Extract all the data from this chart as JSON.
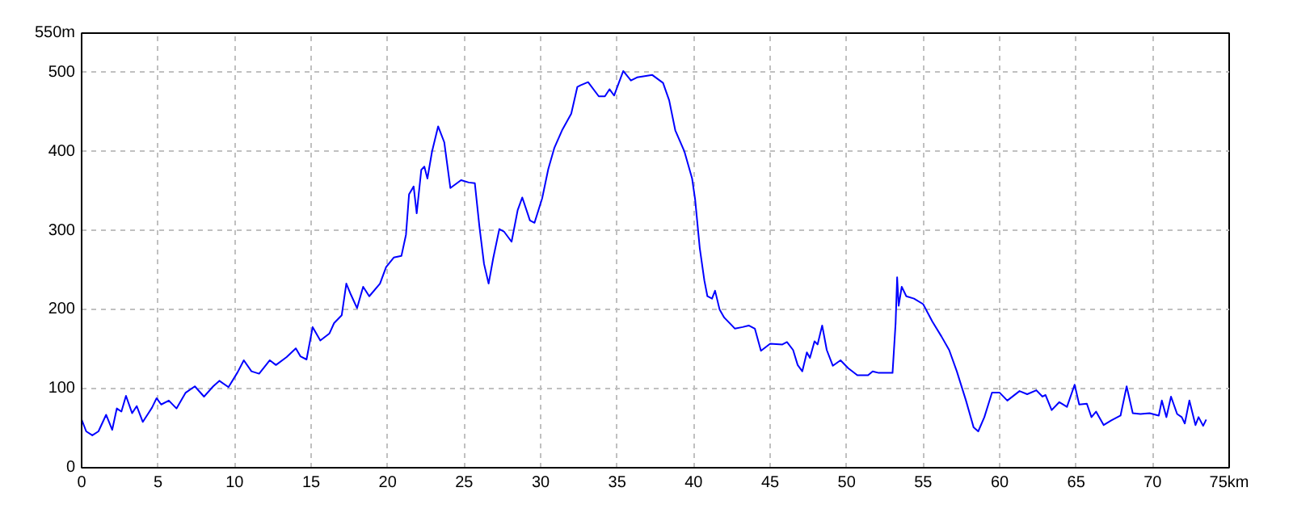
{
  "chart_data": {
    "type": "line",
    "xlim": [
      0,
      75
    ],
    "ylim": [
      0,
      550
    ],
    "xticks": [
      0,
      5,
      10,
      15,
      20,
      25,
      30,
      35,
      40,
      45,
      50,
      55,
      60,
      65,
      70,
      {
        "value": 75,
        "label": "75km"
      }
    ],
    "yticks": [
      0,
      100,
      200,
      300,
      400,
      500,
      {
        "value": 550,
        "label": "550m"
      }
    ],
    "grid": true,
    "series": [
      {
        "color": "#0000ff",
        "x": [
          0,
          0.3,
          0.7,
          1.1,
          1.6,
          2.0,
          2.3,
          2.6,
          2.9,
          3.3,
          3.6,
          4.0,
          4.6,
          4.9,
          5.2,
          5.7,
          6.2,
          6.8,
          7.4,
          8.0,
          8.6,
          9.0,
          9.6,
          10.2,
          10.6,
          11.1,
          11.6,
          12.3,
          12.7,
          13.4,
          14.0,
          14.3,
          14.7,
          15.1,
          15.6,
          16.2,
          16.5,
          17.0,
          17.3,
          17.6,
          18.0,
          18.4,
          18.8,
          19.5,
          19.9,
          20.4,
          20.9,
          21.2,
          21.4,
          21.7,
          21.9,
          22.2,
          22.4,
          22.6,
          22.9,
          23.3,
          23.7,
          24.1,
          24.8,
          25.3,
          25.7,
          26.0,
          26.3,
          26.6,
          26.9,
          27.3,
          27.6,
          28.1,
          28.5,
          28.8,
          29.3,
          29.6,
          30.1,
          30.5,
          30.9,
          31.4,
          32.0,
          32.4,
          32.6,
          33.1,
          33.8,
          34.2,
          34.5,
          34.8,
          35.4,
          35.9,
          36.3,
          37.3,
          38.0,
          38.4,
          38.8,
          39.4,
          39.9,
          40.1,
          40.4,
          40.7,
          40.9,
          41.2,
          41.4,
          41.7,
          42.0,
          42.5,
          42.7,
          43.2,
          43.6,
          44.0,
          44.4,
          45.0,
          45.8,
          46.1,
          46.5,
          46.8,
          47.1,
          47.4,
          47.6,
          47.9,
          48.1,
          48.4,
          48.7,
          49.1,
          49.6,
          50.1,
          50.7,
          51.4,
          51.7,
          52.1,
          53.0,
          53.2,
          53.3,
          53.4,
          53.6,
          53.9,
          54.4,
          55.0,
          55.6,
          56.2,
          56.7,
          57.2,
          57.8,
          58.3,
          58.6,
          59.0,
          59.5,
          60.0,
          60.5,
          61.3,
          61.8,
          62.4,
          62.8,
          63.0,
          63.4,
          63.9,
          64.4,
          64.9,
          65.2,
          65.7,
          66.0,
          66.3,
          66.8,
          67.3,
          67.9,
          68.3,
          68.7,
          69.2,
          69.8,
          70.4,
          70.6,
          70.9,
          71.2,
          71.6,
          71.9,
          72.1,
          72.4,
          72.8,
          73.0,
          73.3,
          73.5
        ],
        "values": [
          61,
          46,
          41,
          46,
          67,
          48,
          75,
          71,
          91,
          69,
          78,
          58,
          76,
          88,
          80,
          85,
          75,
          95,
          103,
          90,
          103,
          110,
          102,
          121,
          136,
          122,
          119,
          136,
          130,
          140,
          151,
          141,
          137,
          178,
          161,
          170,
          183,
          193,
          233,
          219,
          202,
          229,
          217,
          233,
          254,
          266,
          268,
          295,
          346,
          356,
          322,
          377,
          381,
          366,
          400,
          432,
          412,
          354,
          364,
          361,
          360,
          305,
          258,
          233,
          265,
          302,
          299,
          286,
          326,
          342,
          313,
          310,
          341,
          378,
          405,
          427,
          448,
          482,
          484,
          488,
          470,
          470,
          479,
          471,
          502,
          490,
          494,
          497,
          487,
          465,
          427,
          400,
          366,
          339,
          278,
          237,
          217,
          214,
          224,
          200,
          190,
          180,
          176,
          178,
          180,
          176,
          148,
          157,
          156,
          159,
          149,
          130,
          122,
          146,
          139,
          160,
          156,
          180,
          149,
          129,
          136,
          126,
          117,
          117,
          122,
          120,
          120,
          183,
          241,
          205,
          229,
          217,
          214,
          207,
          185,
          166,
          149,
          122,
          85,
          51,
          46,
          64,
          95,
          95,
          85,
          97,
          93,
          98,
          90,
          92,
          73,
          83,
          77,
          105,
          80,
          81,
          64,
          71,
          54,
          60,
          66,
          103,
          69,
          68,
          69,
          66,
          85,
          64,
          90,
          68,
          64,
          56,
          85,
          54,
          64,
          53,
          61
        ]
      }
    ]
  }
}
